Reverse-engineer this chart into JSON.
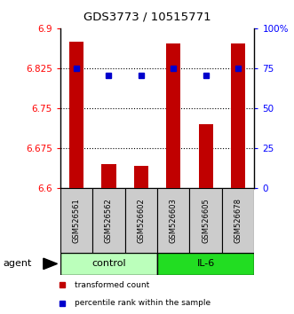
{
  "title": "GDS3773 / 10515771",
  "samples": [
    "GSM526561",
    "GSM526562",
    "GSM526602",
    "GSM526603",
    "GSM526605",
    "GSM526678"
  ],
  "bar_values": [
    6.875,
    6.645,
    6.643,
    6.872,
    6.72,
    6.872
  ],
  "bar_base": 6.6,
  "blue_dot_values": [
    6.825,
    6.812,
    6.812,
    6.825,
    6.812,
    6.825
  ],
  "bar_color": "#c00000",
  "dot_color": "#0000cc",
  "ylim": [
    6.6,
    6.9
  ],
  "y2lim": [
    0,
    100
  ],
  "yticks": [
    6.6,
    6.675,
    6.75,
    6.825,
    6.9
  ],
  "ytick_labels": [
    "6.6",
    "6.675",
    "6.75",
    "6.825",
    "6.9"
  ],
  "y2ticks": [
    0,
    25,
    50,
    75,
    100
  ],
  "y2tick_labels": [
    "0",
    "25",
    "50",
    "75",
    "100%"
  ],
  "hlines": [
    6.675,
    6.75,
    6.825
  ],
  "groups": [
    {
      "label": "control",
      "color": "#bbffbb",
      "count": 3
    },
    {
      "label": "IL-6",
      "color": "#22dd22",
      "count": 3
    }
  ],
  "agent_label": "agent",
  "legend_bar_label": "transformed count",
  "legend_dot_label": "percentile rank within the sample",
  "background_color": "#ffffff",
  "label_area_color": "#cccccc"
}
